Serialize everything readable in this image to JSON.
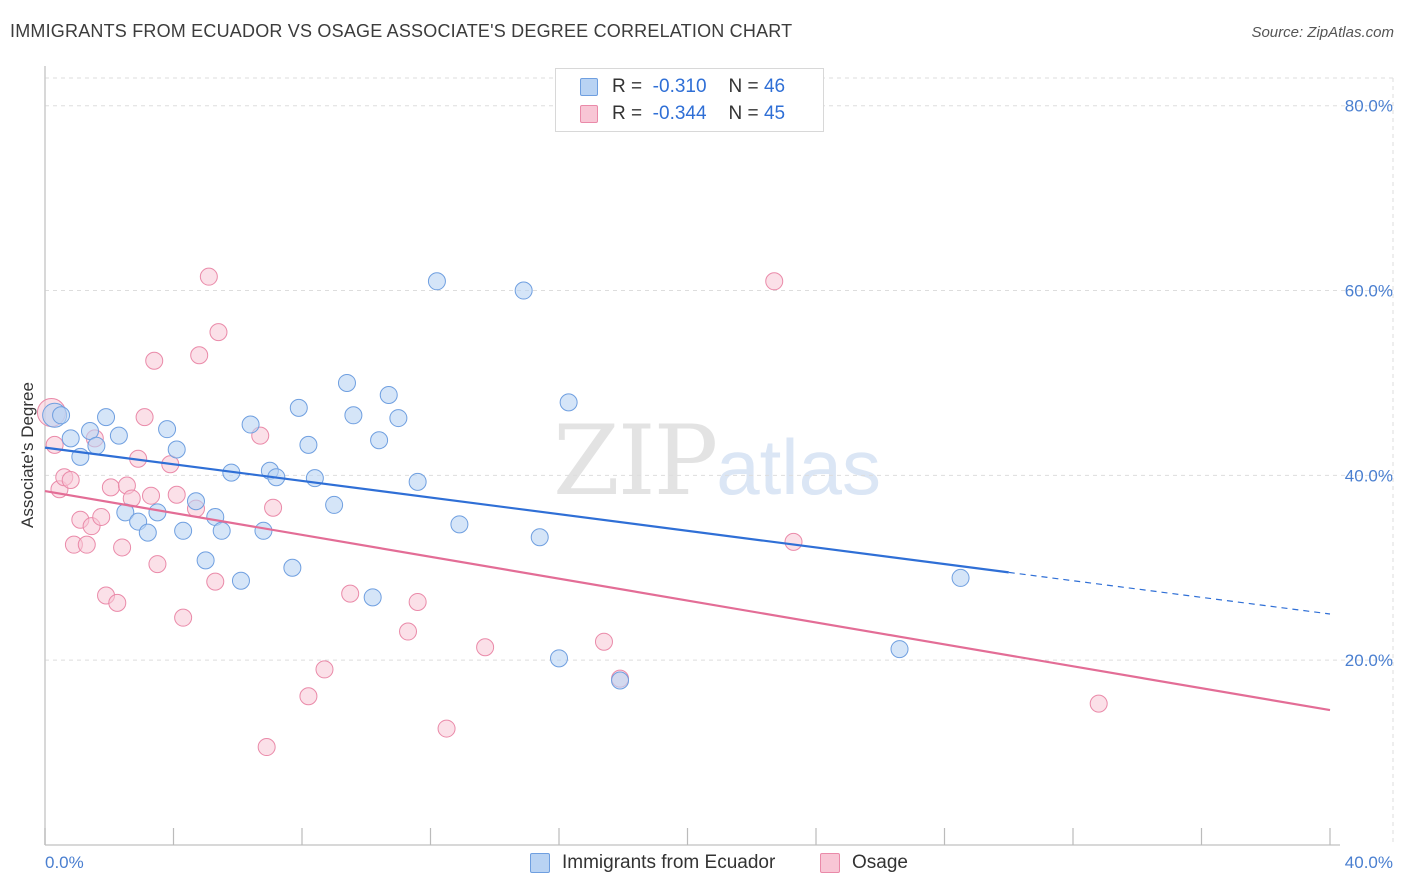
{
  "title": "IMMIGRANTS FROM ECUADOR VS OSAGE ASSOCIATE'S DEGREE CORRELATION CHART",
  "source": "Source: ZipAtlas.com",
  "watermark": {
    "zip": "ZIP",
    "atlas": "atlas"
  },
  "legend": {
    "series1": {
      "r_label": "R =",
      "r_value": "-0.310",
      "n_label": "N =",
      "n_value": "46"
    },
    "series2": {
      "r_label": "R =",
      "r_value": "-0.344",
      "n_label": "N =",
      "n_value": "45"
    }
  },
  "bottom_legend": {
    "series1": "Immigrants from Ecuador",
    "series2": "Osage"
  },
  "colors": {
    "series1_fill": "#b9d3f3",
    "series1_stroke": "#6f9fe0",
    "series1_line": "#2f6fd6",
    "series2_fill": "#f8c6d5",
    "series2_stroke": "#ea8aa9",
    "series2_line": "#e36d96",
    "grid": "#dddddd",
    "tick_text": "#4a7fd0"
  },
  "chart_data": {
    "type": "scatter",
    "title": "IMMIGRANTS FROM ECUADOR VS OSAGE ASSOCIATE'S DEGREE CORRELATION CHART",
    "xlabel": "",
    "ylabel": "Associate's Degree",
    "xlim": [
      0,
      40
    ],
    "ylim": [
      0,
      83
    ],
    "x_tick_labels": [
      "0.0%",
      "40.0%"
    ],
    "y_ticks": [
      20,
      40,
      60,
      80
    ],
    "y_tick_labels": [
      "20.0%",
      "40.0%",
      "60.0%",
      "80.0%"
    ],
    "grid": true,
    "legend_position": "top-center",
    "series": [
      {
        "name": "Immigrants from Ecuador",
        "points": [
          [
            0.3,
            46.5
          ],
          [
            0.5,
            46.5
          ],
          [
            0.8,
            44.0
          ],
          [
            1.1,
            42.0
          ],
          [
            1.4,
            44.8
          ],
          [
            1.6,
            43.2
          ],
          [
            1.9,
            46.3
          ],
          [
            2.3,
            44.3
          ],
          [
            2.5,
            36.0
          ],
          [
            2.9,
            35.0
          ],
          [
            3.2,
            33.8
          ],
          [
            3.5,
            36.0
          ],
          [
            3.8,
            45.0
          ],
          [
            4.1,
            42.8
          ],
          [
            4.3,
            34.0
          ],
          [
            4.7,
            37.2
          ],
          [
            5.0,
            30.8
          ],
          [
            5.3,
            35.5
          ],
          [
            5.5,
            34.0
          ],
          [
            5.8,
            40.3
          ],
          [
            6.1,
            28.6
          ],
          [
            6.4,
            45.5
          ],
          [
            6.8,
            34.0
          ],
          [
            7.0,
            40.5
          ],
          [
            7.2,
            39.8
          ],
          [
            7.7,
            30.0
          ],
          [
            7.9,
            47.3
          ],
          [
            8.2,
            43.3
          ],
          [
            8.4,
            39.7
          ],
          [
            9.0,
            36.8
          ],
          [
            9.4,
            50.0
          ],
          [
            9.6,
            46.5
          ],
          [
            10.2,
            26.8
          ],
          [
            10.4,
            43.8
          ],
          [
            10.7,
            48.7
          ],
          [
            11.0,
            46.2
          ],
          [
            11.6,
            39.3
          ],
          [
            12.2,
            61.0
          ],
          [
            12.9,
            34.7
          ],
          [
            14.9,
            60.0
          ],
          [
            15.4,
            33.3
          ],
          [
            16.0,
            20.2
          ],
          [
            16.3,
            47.9
          ],
          [
            17.9,
            17.8
          ],
          [
            26.6,
            21.2
          ],
          [
            28.5,
            28.9
          ]
        ]
      },
      {
        "name": "Osage",
        "points": [
          [
            0.2,
            46.8
          ],
          [
            0.3,
            43.3
          ],
          [
            0.45,
            38.5
          ],
          [
            0.6,
            39.8
          ],
          [
            0.8,
            39.5
          ],
          [
            0.9,
            32.5
          ],
          [
            1.1,
            35.2
          ],
          [
            1.3,
            32.5
          ],
          [
            1.45,
            34.5
          ],
          [
            1.55,
            44.0
          ],
          [
            1.75,
            35.5
          ],
          [
            1.9,
            27.0
          ],
          [
            2.05,
            38.7
          ],
          [
            2.25,
            26.2
          ],
          [
            2.4,
            32.2
          ],
          [
            2.55,
            38.9
          ],
          [
            2.7,
            37.5
          ],
          [
            2.9,
            41.8
          ],
          [
            3.1,
            46.3
          ],
          [
            3.3,
            37.8
          ],
          [
            3.4,
            52.4
          ],
          [
            3.5,
            30.4
          ],
          [
            3.9,
            41.2
          ],
          [
            4.1,
            37.9
          ],
          [
            4.3,
            24.6
          ],
          [
            4.7,
            36.4
          ],
          [
            4.8,
            53.0
          ],
          [
            5.1,
            61.5
          ],
          [
            5.3,
            28.5
          ],
          [
            5.4,
            55.5
          ],
          [
            6.7,
            44.3
          ],
          [
            6.9,
            10.6
          ],
          [
            7.1,
            36.5
          ],
          [
            8.2,
            16.1
          ],
          [
            8.7,
            19.0
          ],
          [
            9.5,
            27.2
          ],
          [
            11.3,
            23.1
          ],
          [
            11.6,
            26.3
          ],
          [
            12.5,
            12.6
          ],
          [
            13.7,
            21.4
          ],
          [
            17.4,
            22.0
          ],
          [
            17.9,
            18.0
          ],
          [
            22.7,
            61.0
          ],
          [
            23.3,
            32.8
          ],
          [
            32.8,
            15.3
          ]
        ]
      }
    ],
    "trend_lines": [
      {
        "name": "Immigrants from Ecuador",
        "solid": [
          [
            0,
            43.0
          ],
          [
            30.0,
            29.5
          ]
        ],
        "dashed": [
          [
            30.0,
            29.5
          ],
          [
            40.0,
            25.0
          ]
        ]
      },
      {
        "name": "Osage",
        "solid": [
          [
            0,
            38.3
          ],
          [
            40.0,
            14.6
          ]
        ]
      }
    ]
  }
}
